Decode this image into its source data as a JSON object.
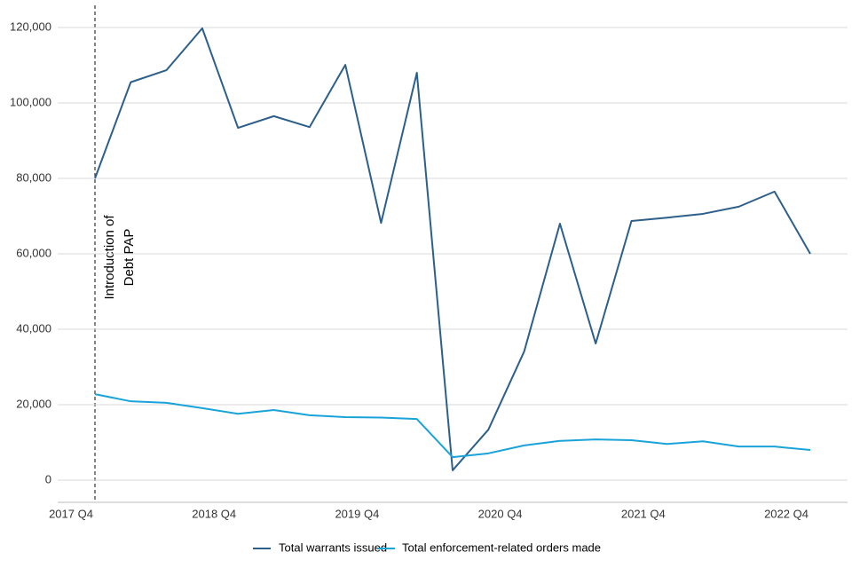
{
  "chart_data": {
    "type": "line",
    "categories": [
      "2017 Q4",
      null,
      null,
      null,
      "2018 Q4",
      null,
      null,
      null,
      "2019 Q4",
      null,
      null,
      null,
      "2020 Q4",
      null,
      null,
      null,
      "2021 Q4",
      null,
      null,
      null,
      "2022 Q4"
    ],
    "series": [
      {
        "name": "Total warrants issued",
        "color": "#2d5f8b",
        "values": [
          80000,
          105500,
          108700,
          119800,
          93400,
          96500,
          93600,
          110100,
          68200,
          108000,
          2600,
          13400,
          34100,
          68000,
          36200,
          68700,
          69600,
          70600,
          72500,
          76500,
          60000
        ]
      },
      {
        "name": "Total enforcement-related orders made",
        "color": "#1aa3d9",
        "values": [
          22800,
          20900,
          20500,
          19100,
          17600,
          18600,
          17200,
          16700,
          16600,
          16200,
          6100,
          7100,
          9200,
          10400,
          10800,
          10600,
          9600,
          10300,
          8900,
          8900,
          8000
        ]
      }
    ],
    "ylim": [
      0,
      120000
    ],
    "yticks": [
      0,
      {
        "value": 20000,
        "label": "20,000"
      },
      {
        "value": 40000,
        "label": "40,000"
      },
      {
        "value": 60000,
        "label": "60,000"
      },
      {
        "value": 80000,
        "label": "80,000"
      },
      {
        "value": 100000,
        "label": "100,000"
      },
      {
        "value": 120000,
        "label": "120,000"
      }
    ],
    "grid": true,
    "annotation": [
      "Introduction of",
      "Debt PAP"
    ],
    "legend": "bottom"
  }
}
